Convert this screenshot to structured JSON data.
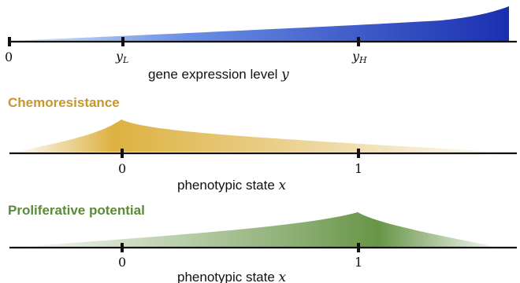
{
  "colors": {
    "expression_light": "#c9e1f7",
    "expression_mid": "#5f82e0",
    "expression_dark": "#1a2fb0",
    "chemo": "#d9a92c",
    "chemo_title": "#c9962b",
    "prolif": "#5f8f3d",
    "prolif_title": "#5a8a3a",
    "axis": "#111111"
  },
  "panel_expression": {
    "axis_label_text": "gene expression level ",
    "axis_label_var": "y",
    "ticks": [
      {
        "name": "tick-zero",
        "main": "0",
        "sub": ""
      },
      {
        "name": "tick-yl",
        "main": "y",
        "sub": "L"
      },
      {
        "name": "tick-yh",
        "main": "y",
        "sub": "H"
      }
    ]
  },
  "panel_chemo": {
    "title": "Chemoresistance",
    "axis_label_text": "phenotypic state ",
    "axis_label_var": "x",
    "ticks": [
      "0",
      "1"
    ]
  },
  "panel_prolif": {
    "title": "Proliferative potential",
    "axis_label_text": "phenotypic state ",
    "axis_label_var": "x",
    "ticks": [
      "0",
      "1"
    ]
  }
}
